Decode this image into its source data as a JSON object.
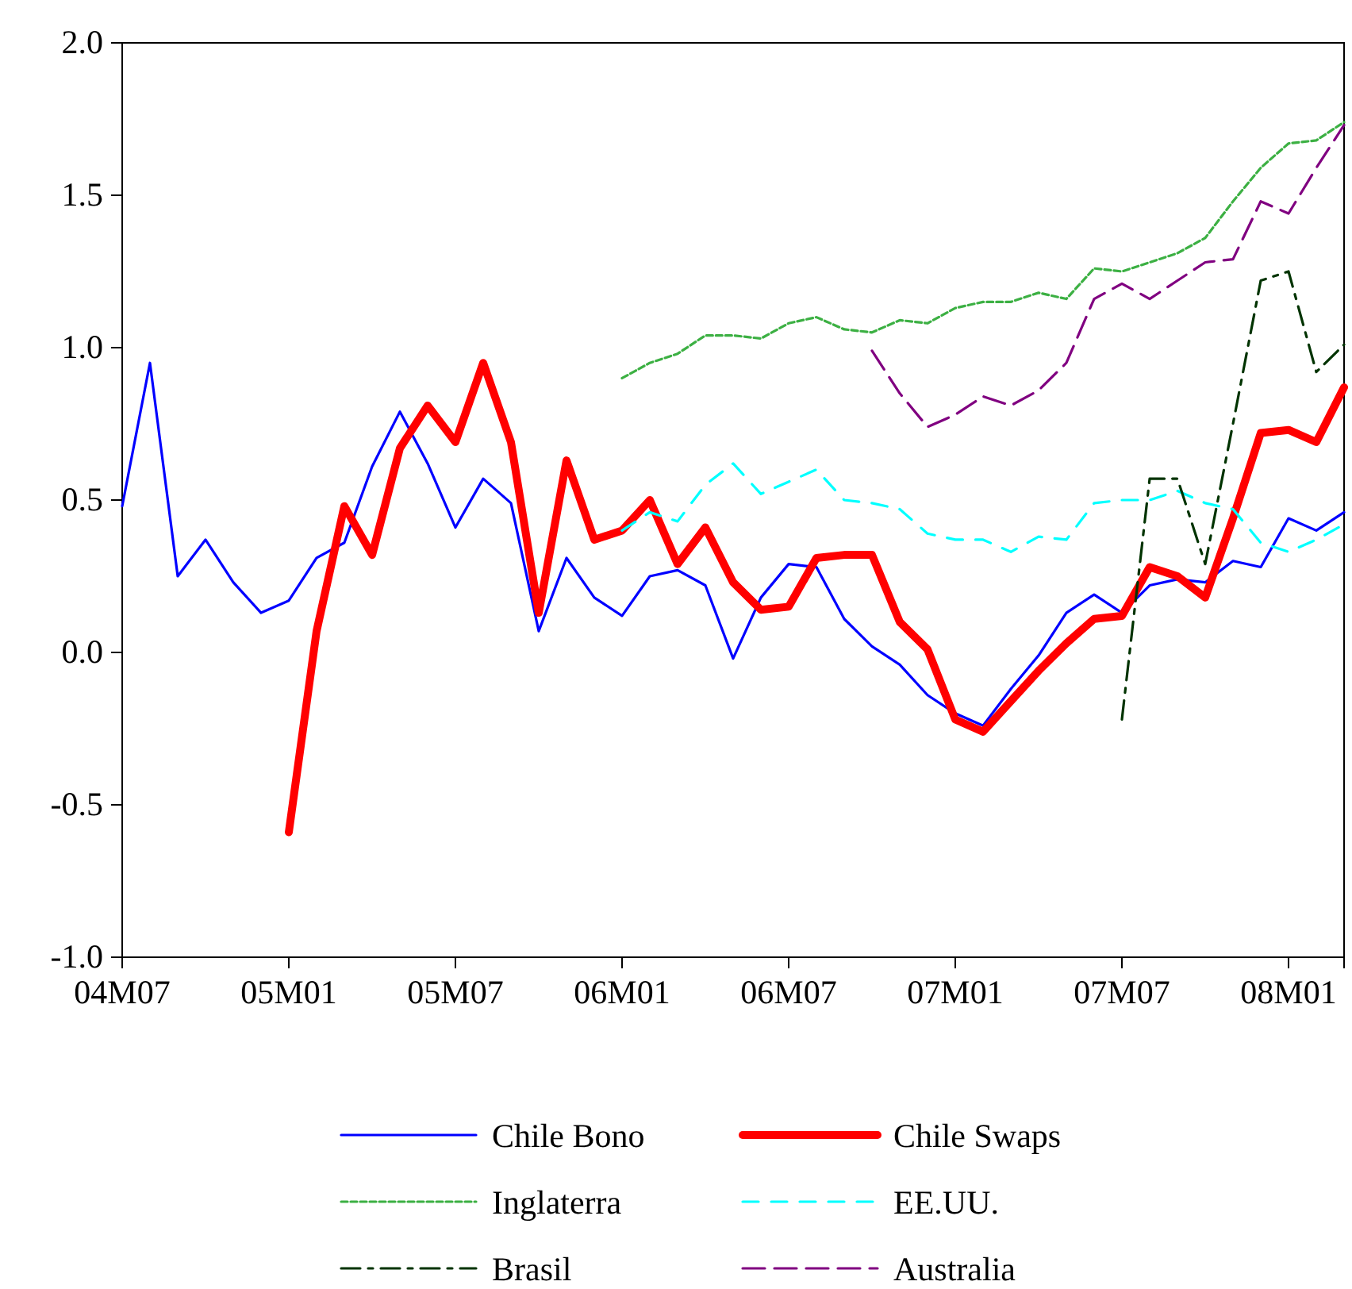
{
  "chart_data": {
    "type": "line",
    "categories": [
      "04M07",
      null,
      null,
      null,
      null,
      null,
      "05M01",
      null,
      null,
      null,
      null,
      null,
      "05M07",
      null,
      null,
      null,
      null,
      null,
      "06M01",
      null,
      null,
      null,
      null,
      null,
      "06M07",
      null,
      null,
      null,
      null,
      null,
      "07M01",
      null,
      null,
      null,
      null,
      null,
      "07M07",
      null,
      null,
      null,
      null,
      null,
      "08M01",
      null,
      null
    ],
    "ylim": [
      -1.0,
      2.0
    ],
    "yticks": [
      {
        "value": -1.0,
        "label": "-1.0"
      },
      {
        "value": -0.5,
        "label": "-0.5"
      },
      {
        "value": 0.0,
        "label": "0.0"
      },
      {
        "value": 0.5,
        "label": "0.5"
      },
      {
        "value": 1.0,
        "label": "1.0"
      },
      {
        "value": 1.5,
        "label": "1.5"
      },
      {
        "value": 2.0,
        "label": "2.0"
      }
    ],
    "grid": false,
    "legend": "bottom",
    "marker": "none",
    "series": [
      {
        "name": "Chile Bono",
        "color": "#0000ff",
        "line_style": "solid",
        "values": [
          0.48,
          0.95,
          0.25,
          0.37,
          0.23,
          0.13,
          0.17,
          0.31,
          0.36,
          0.61,
          0.79,
          0.62,
          0.41,
          0.57,
          0.49,
          0.07,
          0.31,
          0.18,
          0.12,
          0.25,
          0.27,
          0.22,
          -0.02,
          0.18,
          0.29,
          0.28,
          0.11,
          0.02,
          -0.04,
          -0.14,
          -0.2,
          -0.24,
          -0.12,
          -0.01,
          0.13,
          0.19,
          0.13,
          0.22,
          0.24,
          0.23,
          0.3,
          0.28,
          0.44,
          0.4,
          0.46
        ]
      },
      {
        "name": "Chile Swaps",
        "color": "#ff0000",
        "line_style": "solid",
        "values": [
          null,
          null,
          null,
          null,
          null,
          null,
          -0.59,
          0.07,
          0.48,
          0.32,
          0.67,
          0.81,
          0.69,
          0.95,
          0.69,
          0.13,
          0.63,
          0.37,
          0.4,
          0.5,
          0.29,
          0.41,
          0.23,
          0.14,
          0.15,
          0.31,
          0.32,
          0.32,
          0.1,
          0.01,
          -0.22,
          -0.26,
          -0.16,
          -0.06,
          0.03,
          0.11,
          0.12,
          0.28,
          0.25,
          0.18,
          0.44,
          0.72,
          0.73,
          0.69,
          0.87
        ]
      },
      {
        "name": "Inglaterra",
        "color": "#3cb043",
        "line_style": "dashed",
        "values": [
          null,
          null,
          null,
          null,
          null,
          null,
          null,
          null,
          null,
          null,
          null,
          null,
          null,
          null,
          null,
          null,
          null,
          null,
          0.9,
          0.95,
          0.98,
          1.04,
          1.04,
          1.03,
          1.08,
          1.1,
          1.06,
          1.05,
          1.09,
          1.08,
          1.13,
          1.15,
          1.15,
          1.18,
          1.16,
          1.26,
          1.25,
          1.28,
          1.31,
          1.36,
          1.48,
          1.59,
          1.67,
          1.68,
          1.74
        ]
      },
      {
        "name": "EE.UU.",
        "color": "#00ffff",
        "line_style": "dashed",
        "values": [
          null,
          null,
          null,
          null,
          null,
          null,
          null,
          null,
          null,
          null,
          null,
          null,
          null,
          null,
          null,
          null,
          null,
          null,
          0.4,
          0.46,
          0.43,
          0.55,
          0.62,
          0.52,
          0.56,
          0.6,
          0.5,
          0.49,
          0.47,
          0.39,
          0.37,
          0.37,
          0.33,
          0.38,
          0.37,
          0.49,
          0.5,
          0.5,
          0.53,
          0.49,
          0.47,
          0.36,
          0.33,
          0.37,
          0.42
        ]
      },
      {
        "name": "Brasil",
        "color": "#003300",
        "line_style": "dashed",
        "values": [
          null,
          null,
          null,
          null,
          null,
          null,
          null,
          null,
          null,
          null,
          null,
          null,
          null,
          null,
          null,
          null,
          null,
          null,
          null,
          null,
          null,
          null,
          null,
          null,
          null,
          null,
          null,
          null,
          null,
          null,
          null,
          null,
          null,
          null,
          null,
          null,
          -0.22,
          0.57,
          0.57,
          0.29,
          0.75,
          1.22,
          1.25,
          0.92,
          1.01
        ]
      },
      {
        "name": "Australia",
        "color": "#800080",
        "line_style": "dashed",
        "values": [
          null,
          null,
          null,
          null,
          null,
          null,
          null,
          null,
          null,
          null,
          null,
          null,
          null,
          null,
          null,
          null,
          null,
          null,
          null,
          null,
          null,
          null,
          null,
          null,
          null,
          null,
          null,
          0.99,
          0.85,
          0.74,
          0.78,
          0.84,
          0.81,
          0.86,
          0.95,
          1.16,
          1.21,
          1.16,
          1.22,
          1.28,
          1.29,
          1.48,
          1.44,
          1.59,
          1.73
        ]
      }
    ]
  }
}
